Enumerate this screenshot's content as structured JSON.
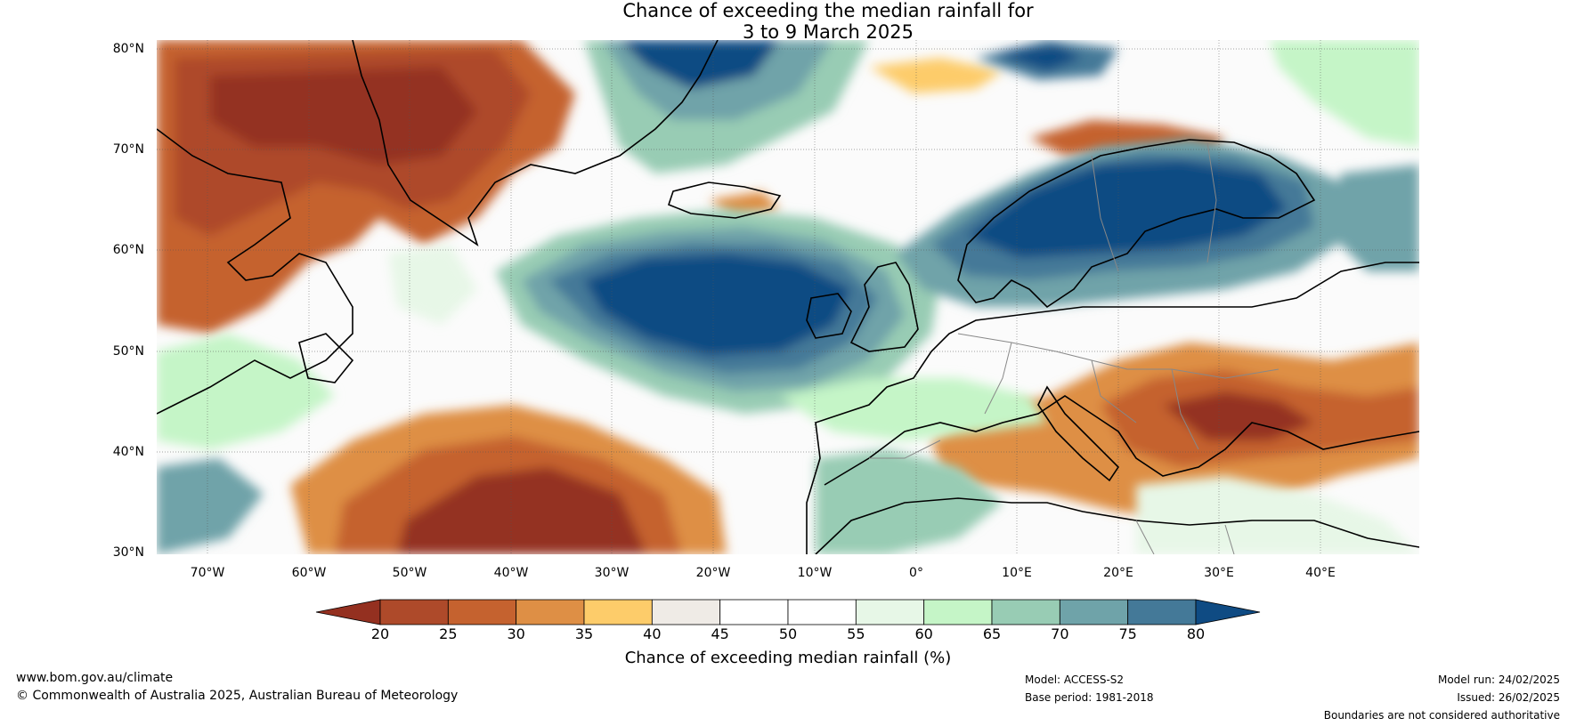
{
  "title": {
    "line1": "Chance of exceeding the median rainfall for",
    "line2": "3 to 9 March 2025"
  },
  "map": {
    "lat_labels": [
      "80°N",
      "70°N",
      "60°N",
      "50°N",
      "40°N",
      "30°N"
    ],
    "lon_labels": [
      "70°W",
      "60°W",
      "50°W",
      "40°W",
      "30°W",
      "20°W",
      "10°W",
      "0°",
      "10°E",
      "20°E",
      "30°E",
      "40°E"
    ]
  },
  "colorbar": {
    "ticks": [
      "20",
      "25",
      "30",
      "35",
      "40",
      "45",
      "50",
      "55",
      "60",
      "65",
      "70",
      "75",
      "80"
    ],
    "colors": [
      "#943020",
      "#ae4a2a",
      "#c5622f",
      "#de8f45",
      "#fdcc6a",
      "#efebe6",
      "#ffffff",
      "#ffffff",
      "#e7f7e7",
      "#c5f5c7",
      "#98ccb4",
      "#6fa3a9",
      "#447998",
      "#0f4b83"
    ],
    "label": "Chance of exceeding median rainfall (%)"
  },
  "footer": {
    "website": "www.bom.gov.au/climate",
    "copyright": "© Commonwealth of Australia 2025, Australian Bureau of Meteorology",
    "model": "Model: ACCESS-S2",
    "base_period": "Base period: 1981-2018",
    "model_run": "Model run: 24/02/2025",
    "issued": "Issued: 26/02/2025",
    "disclaimer": "Boundaries are not considered authoritative"
  }
}
